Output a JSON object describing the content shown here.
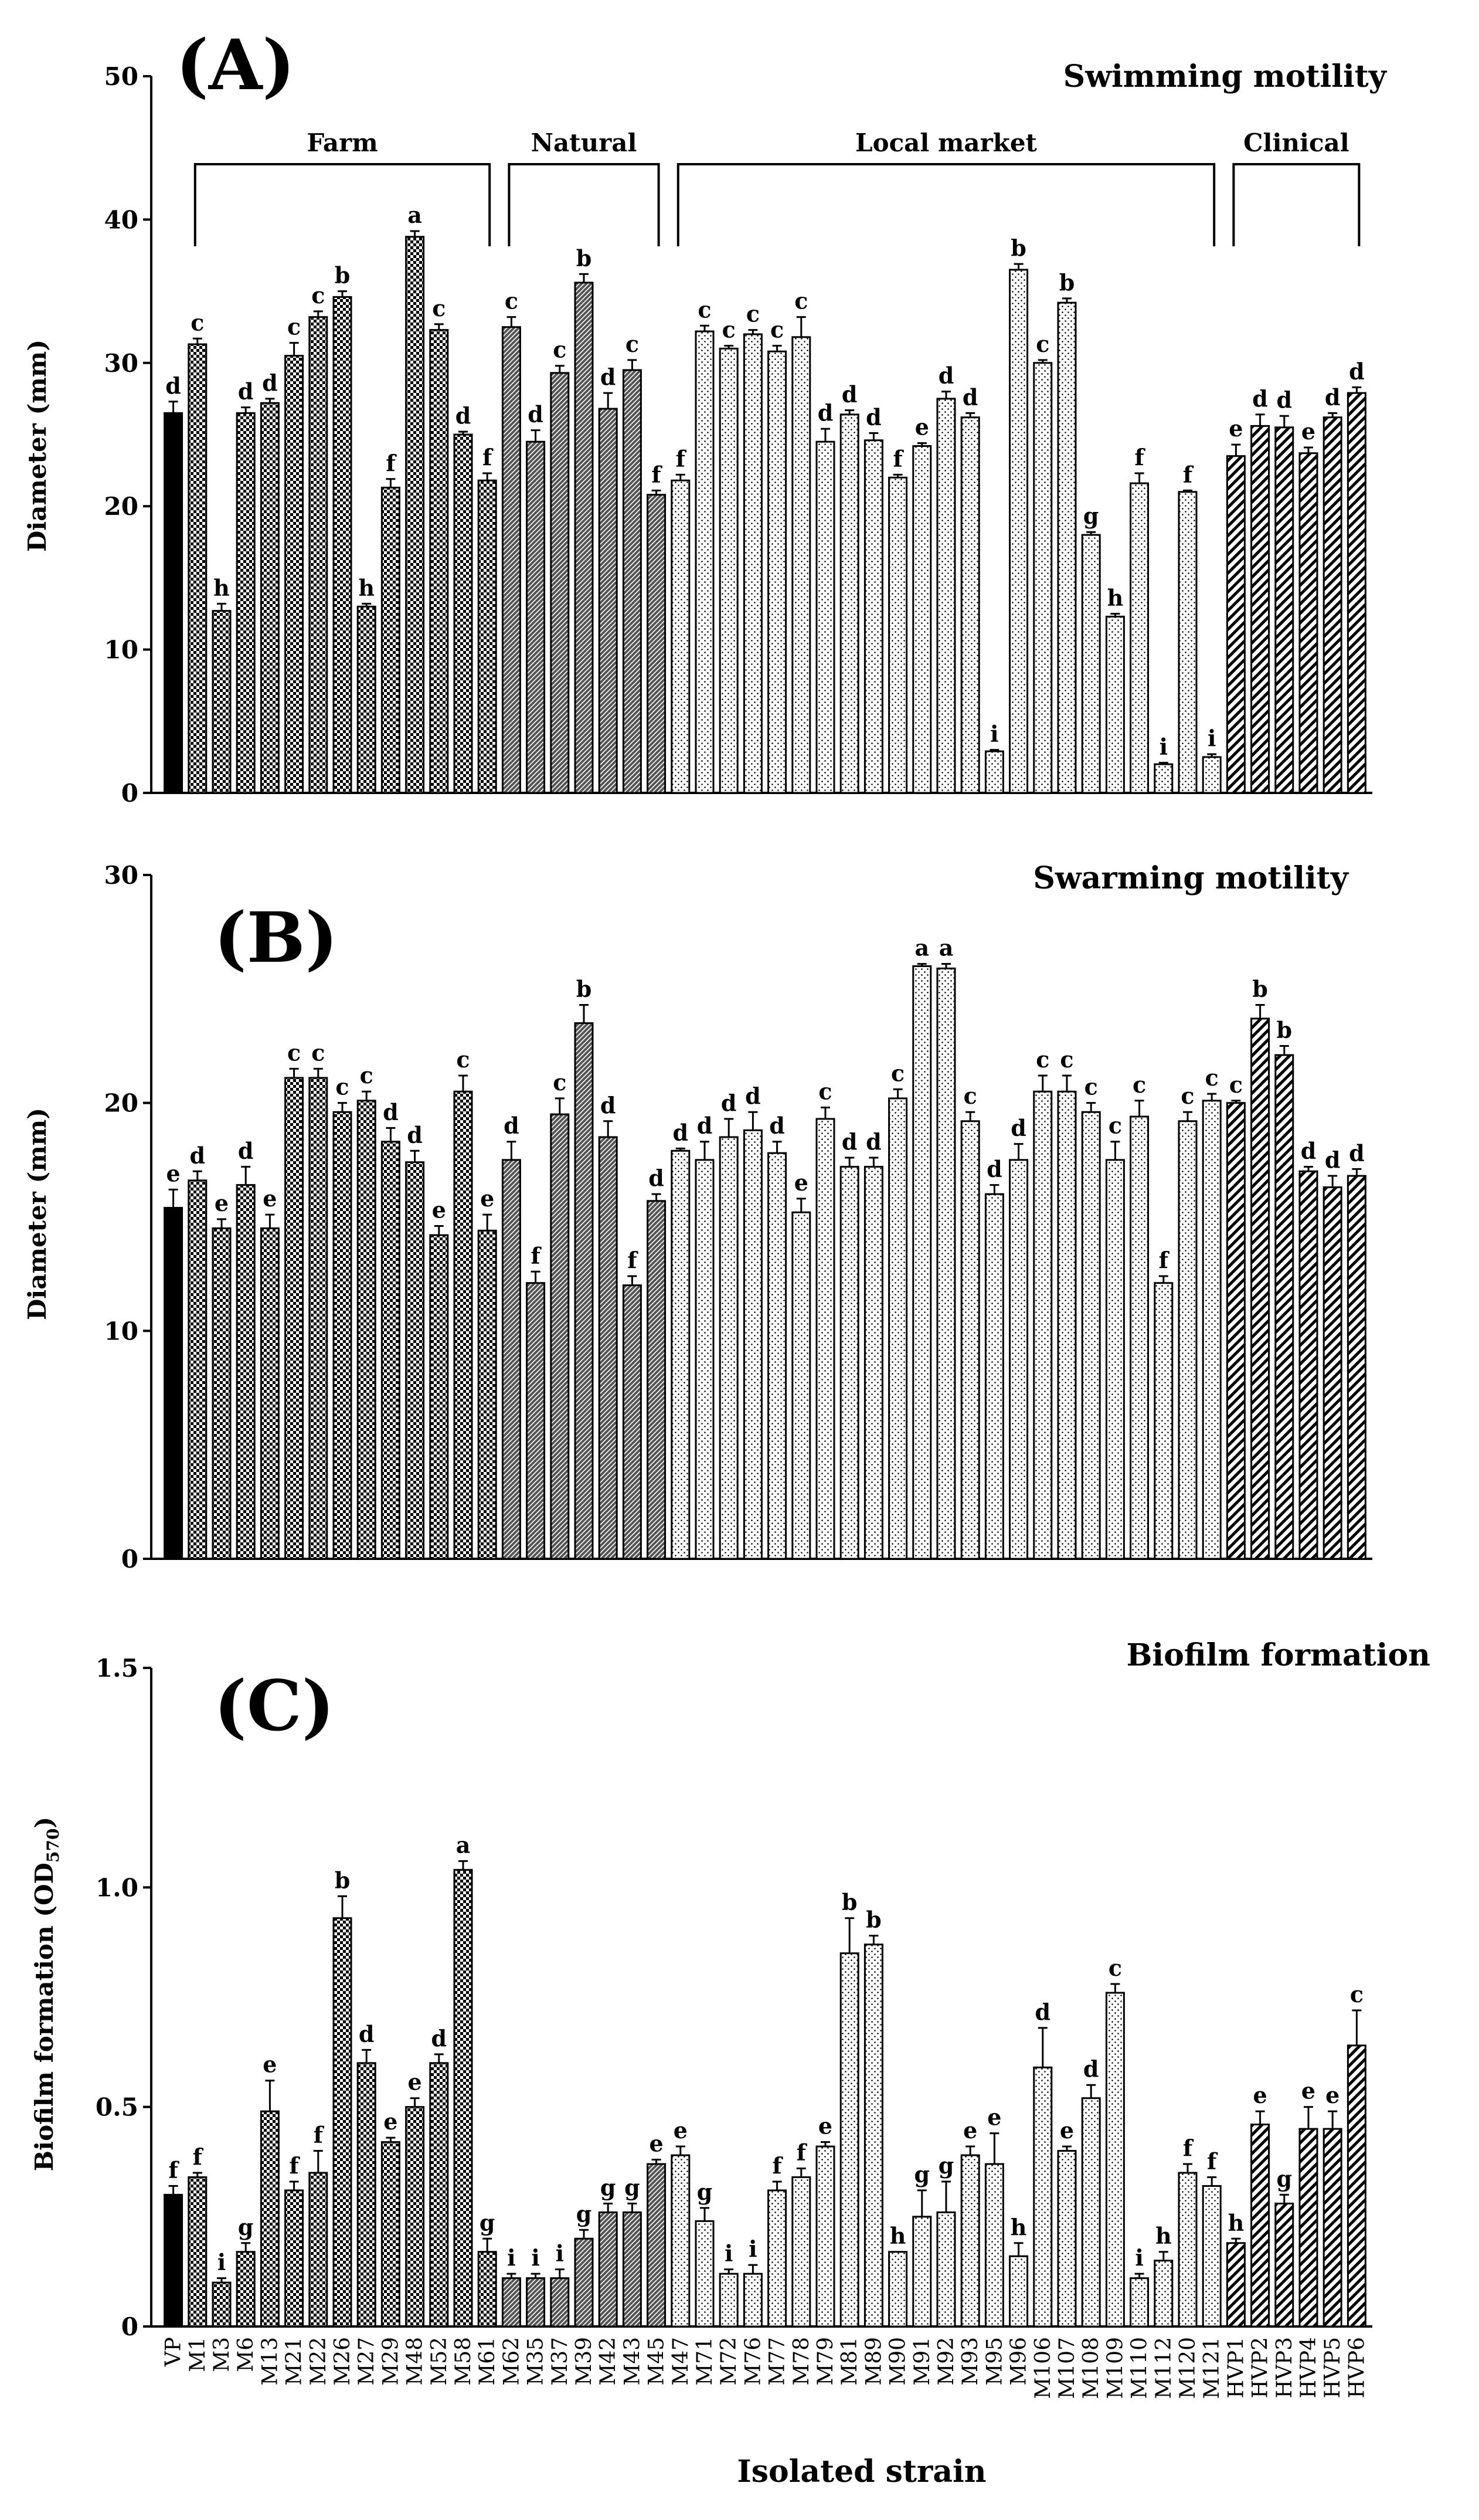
{
  "x_axis_title": "Isolated strain",
  "strains": [
    "VP",
    "M1",
    "M3",
    "M6",
    "M13",
    "M21",
    "M22",
    "M26",
    "M27",
    "M29",
    "M48",
    "M52",
    "M58",
    "M61",
    "M62",
    "M35",
    "M37",
    "M39",
    "M42",
    "M43",
    "M45",
    "M47",
    "M71",
    "M72",
    "M76",
    "M77",
    "M78",
    "M79",
    "M81",
    "M89",
    "M90",
    "M91",
    "M92",
    "M93",
    "M95",
    "M96",
    "M106",
    "M107",
    "M108",
    "M109",
    "M110",
    "M112",
    "M120",
    "M121",
    "HVP1",
    "HVP2",
    "HVP3",
    "HVP4",
    "HVP5",
    "HVP6"
  ],
  "groups": [
    {
      "name": "Farm",
      "first": "M1",
      "last": "M61"
    },
    {
      "name": "Natural",
      "first": "M62",
      "last": "M45"
    },
    {
      "name": "Local market",
      "first": "M47",
      "last": "M121"
    },
    {
      "name": "Clinical",
      "first": "HVP1",
      "last": "HVP6"
    }
  ],
  "chart_data": [
    {
      "type": "bar",
      "panel_label": "(A)",
      "title": "Swimming motility",
      "ylabel": "Diameter (mm)",
      "ylim": [
        0,
        50
      ],
      "yticks": [
        0,
        10,
        20,
        30,
        40,
        50
      ],
      "values": [
        26.5,
        31.3,
        12.7,
        26.5,
        27.2,
        30.5,
        33.2,
        34.6,
        13.0,
        21.3,
        38.8,
        32.3,
        25.0,
        21.8,
        32.5,
        24.5,
        29.3,
        35.6,
        26.8,
        29.5,
        20.8,
        21.8,
        32.2,
        31.0,
        32.0,
        30.8,
        31.8,
        24.5,
        26.4,
        24.6,
        22.0,
        24.2,
        27.5,
        26.2,
        2.9,
        36.5,
        30.0,
        34.2,
        18.0,
        12.3,
        21.6,
        2.0,
        21.0,
        2.5,
        23.5,
        25.6,
        25.5,
        23.7,
        26.2,
        27.9
      ],
      "errors": [
        0.8,
        0.4,
        0.5,
        0.4,
        0.3,
        0.9,
        0.4,
        0.4,
        0.2,
        0.6,
        0.4,
        0.4,
        0.2,
        0.5,
        0.7,
        0.8,
        0.5,
        0.6,
        1.1,
        0.7,
        0.3,
        0.4,
        0.4,
        0.2,
        0.3,
        0.4,
        1.4,
        0.9,
        0.3,
        0.5,
        0.2,
        0.2,
        0.5,
        0.3,
        0.1,
        0.4,
        0.2,
        0.3,
        0.2,
        0.2,
        0.7,
        0.1,
        0.1,
        0.2,
        0.8,
        0.8,
        0.8,
        0.4,
        0.3,
        0.4
      ],
      "letters": [
        "d",
        "c",
        "h",
        "d",
        "d",
        "c",
        "c",
        "b",
        "h",
        "f",
        "a",
        "c",
        "d",
        "f",
        "c",
        "d",
        "c",
        "b",
        "d",
        "c",
        "f",
        "f",
        "c",
        "c",
        "c",
        "c",
        "c",
        "d",
        "d",
        "d",
        "f",
        "e",
        "d",
        "d",
        "i",
        "b",
        "c",
        "b",
        "g",
        "h",
        "f",
        "i",
        "f",
        "i",
        "e",
        "d",
        "d",
        "e",
        "d",
        "d"
      ]
    },
    {
      "type": "bar",
      "panel_label": "(B)",
      "title": "Swarming motility",
      "ylabel": "Diameter (mm)",
      "ylim": [
        0,
        30
      ],
      "yticks": [
        0,
        10,
        20,
        30
      ],
      "values": [
        15.4,
        16.6,
        14.5,
        16.4,
        14.5,
        21.1,
        21.1,
        19.6,
        20.1,
        18.3,
        17.4,
        14.2,
        20.5,
        14.4,
        17.5,
        12.1,
        19.5,
        23.5,
        18.5,
        12.0,
        15.7,
        17.9,
        17.5,
        18.5,
        18.8,
        17.8,
        15.2,
        19.3,
        17.2,
        17.2,
        20.2,
        26.0,
        25.9,
        19.2,
        16.0,
        17.5,
        20.5,
        20.5,
        19.6,
        17.5,
        19.4,
        12.1,
        19.2,
        20.1,
        20.0,
        23.7,
        22.1,
        17.0,
        16.3,
        16.8
      ],
      "errors": [
        0.8,
        0.4,
        0.4,
        0.8,
        0.6,
        0.4,
        0.4,
        0.4,
        0.4,
        0.6,
        0.5,
        0.4,
        0.7,
        0.7,
        0.8,
        0.5,
        0.7,
        0.8,
        0.7,
        0.4,
        0.3,
        0.1,
        0.8,
        0.8,
        0.8,
        0.5,
        0.6,
        0.5,
        0.4,
        0.4,
        0.4,
        0.1,
        0.2,
        0.4,
        0.4,
        0.7,
        0.7,
        0.7,
        0.4,
        0.8,
        0.7,
        0.3,
        0.4,
        0.3,
        0.1,
        0.6,
        0.4,
        0.2,
        0.5,
        0.3
      ],
      "letters": [
        "e",
        "d",
        "e",
        "d",
        "e",
        "c",
        "c",
        "c",
        "c",
        "d",
        "d",
        "e",
        "c",
        "e",
        "d",
        "f",
        "c",
        "b",
        "d",
        "f",
        "d",
        "d",
        "d",
        "d",
        "d",
        "d",
        "e",
        "c",
        "d",
        "d",
        "c",
        "a",
        "a",
        "c",
        "d",
        "d",
        "c",
        "c",
        "c",
        "c",
        "c",
        "f",
        "c",
        "c",
        "c",
        "b",
        "b",
        "d",
        "d",
        "d"
      ]
    },
    {
      "type": "bar",
      "panel_label": "(C)",
      "title": "Biofilm formation",
      "ylabel": "Biofilm formation (OD",
      "ylabel_sub": "570",
      "ylabel_end": ")",
      "ylim": [
        0,
        1.5
      ],
      "yticks": [
        "0",
        "0.5",
        "1.0",
        "1.5"
      ],
      "values": [
        0.3,
        0.34,
        0.1,
        0.17,
        0.49,
        0.31,
        0.35,
        0.93,
        0.6,
        0.42,
        0.5,
        0.6,
        1.04,
        0.17,
        0.11,
        0.11,
        0.11,
        0.2,
        0.26,
        0.26,
        0.37,
        0.39,
        0.24,
        0.12,
        0.12,
        0.31,
        0.34,
        0.41,
        0.85,
        0.87,
        0.17,
        0.25,
        0.26,
        0.39,
        0.37,
        0.16,
        0.59,
        0.4,
        0.52,
        0.76,
        0.11,
        0.15,
        0.35,
        0.32,
        0.19,
        0.46,
        0.28,
        0.45,
        0.45,
        0.64
      ],
      "errors": [
        0.02,
        0.01,
        0.01,
        0.02,
        0.07,
        0.02,
        0.05,
        0.05,
        0.03,
        0.01,
        0.02,
        0.02,
        0.02,
        0.03,
        0.01,
        0.01,
        0.02,
        0.02,
        0.02,
        0.02,
        0.01,
        0.02,
        0.03,
        0.01,
        0.02,
        0.02,
        0.02,
        0.01,
        0.08,
        0.02,
        0.0,
        0.06,
        0.07,
        0.02,
        0.07,
        0.03,
        0.09,
        0.01,
        0.03,
        0.02,
        0.01,
        0.02,
        0.02,
        0.02,
        0.01,
        0.03,
        0.02,
        0.05,
        0.04,
        0.08
      ],
      "letters": [
        "f",
        "f",
        "i",
        "g",
        "e",
        "f",
        "f",
        "b",
        "d",
        "e",
        "e",
        "d",
        "a",
        "g",
        "i",
        "i",
        "i",
        "g",
        "g",
        "g",
        "e",
        "e",
        "g",
        "i",
        "i",
        "f",
        "f",
        "e",
        "b",
        "b",
        "h",
        "g",
        "g",
        "e",
        "e",
        "h",
        "d",
        "e",
        "d",
        "c",
        "i",
        "h",
        "f",
        "f",
        "h",
        "e",
        "g",
        "e",
        "e",
        "c"
      ]
    }
  ]
}
